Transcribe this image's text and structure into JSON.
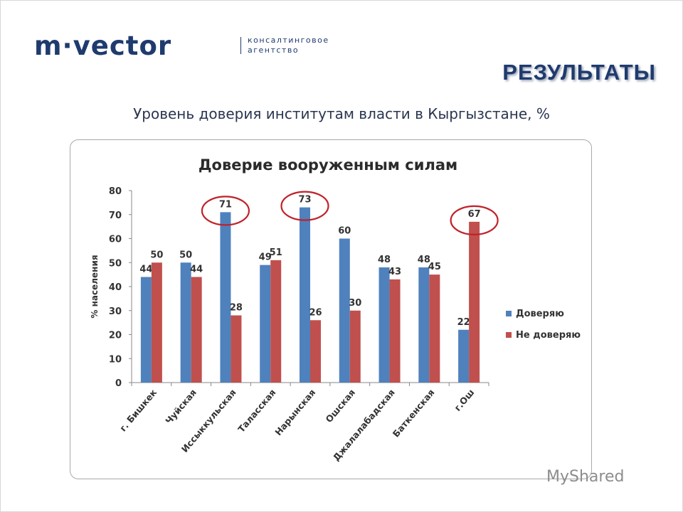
{
  "logo": {
    "brand": "m·vector",
    "tagline": "консалтинговое\nагентство"
  },
  "header": {
    "results": "РЕЗУЛЬТАТЫ",
    "subtitle": "Уровень доверия институтам власти в Кыргызстане, %"
  },
  "watermark": "MyShared",
  "colors": {
    "trust": "#4f81bd",
    "distrust": "#c0504d",
    "circle": "#c0222a",
    "brand": "#1f3b6e"
  },
  "chart_data": {
    "type": "bar",
    "title": "Доверие вооруженным силам",
    "ylabel": "% населения",
    "xlabel": "",
    "ylim": [
      0,
      80
    ],
    "yticks": [
      0,
      10,
      20,
      30,
      40,
      50,
      60,
      70,
      80
    ],
    "grid": false,
    "legend_position": "right",
    "categories": [
      "г. Бишкек",
      "Чуйская",
      "Иссыккульская",
      "Таласская",
      "Нарынская",
      "Ошская",
      "Джалалабадская",
      "Баткенская",
      "г.Ош"
    ],
    "series": [
      {
        "name": "Доверяю",
        "values": [
          44,
          50,
          71,
          49,
          73,
          60,
          48,
          48,
          22
        ]
      },
      {
        "name": "Не доверяю",
        "values": [
          50,
          44,
          28,
          51,
          26,
          30,
          43,
          45,
          67
        ]
      }
    ],
    "highlighted": [
      {
        "series": 0,
        "index": 2
      },
      {
        "series": 0,
        "index": 4
      },
      {
        "series": 1,
        "index": 8
      }
    ]
  }
}
